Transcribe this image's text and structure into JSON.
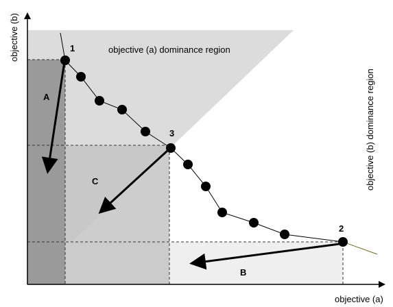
{
  "axes": {
    "x_label": "objective (a)",
    "y_label": "objective (b)"
  },
  "regions": {
    "a_dominance_label": "objective (a) dominance region",
    "b_dominance_label": "objective (b) dominance region"
  },
  "areas": {
    "A": "A",
    "B": "B",
    "C": "C"
  },
  "points": {
    "p1": "1",
    "p2": "2",
    "p3": "3"
  },
  "colors": {
    "region_light": "#dcdcdc",
    "region_mid": "#c4c4c4",
    "region_dark": "#9a9a9a",
    "region_pale": "#efefef",
    "tail_line": "#6b6b1e"
  }
}
